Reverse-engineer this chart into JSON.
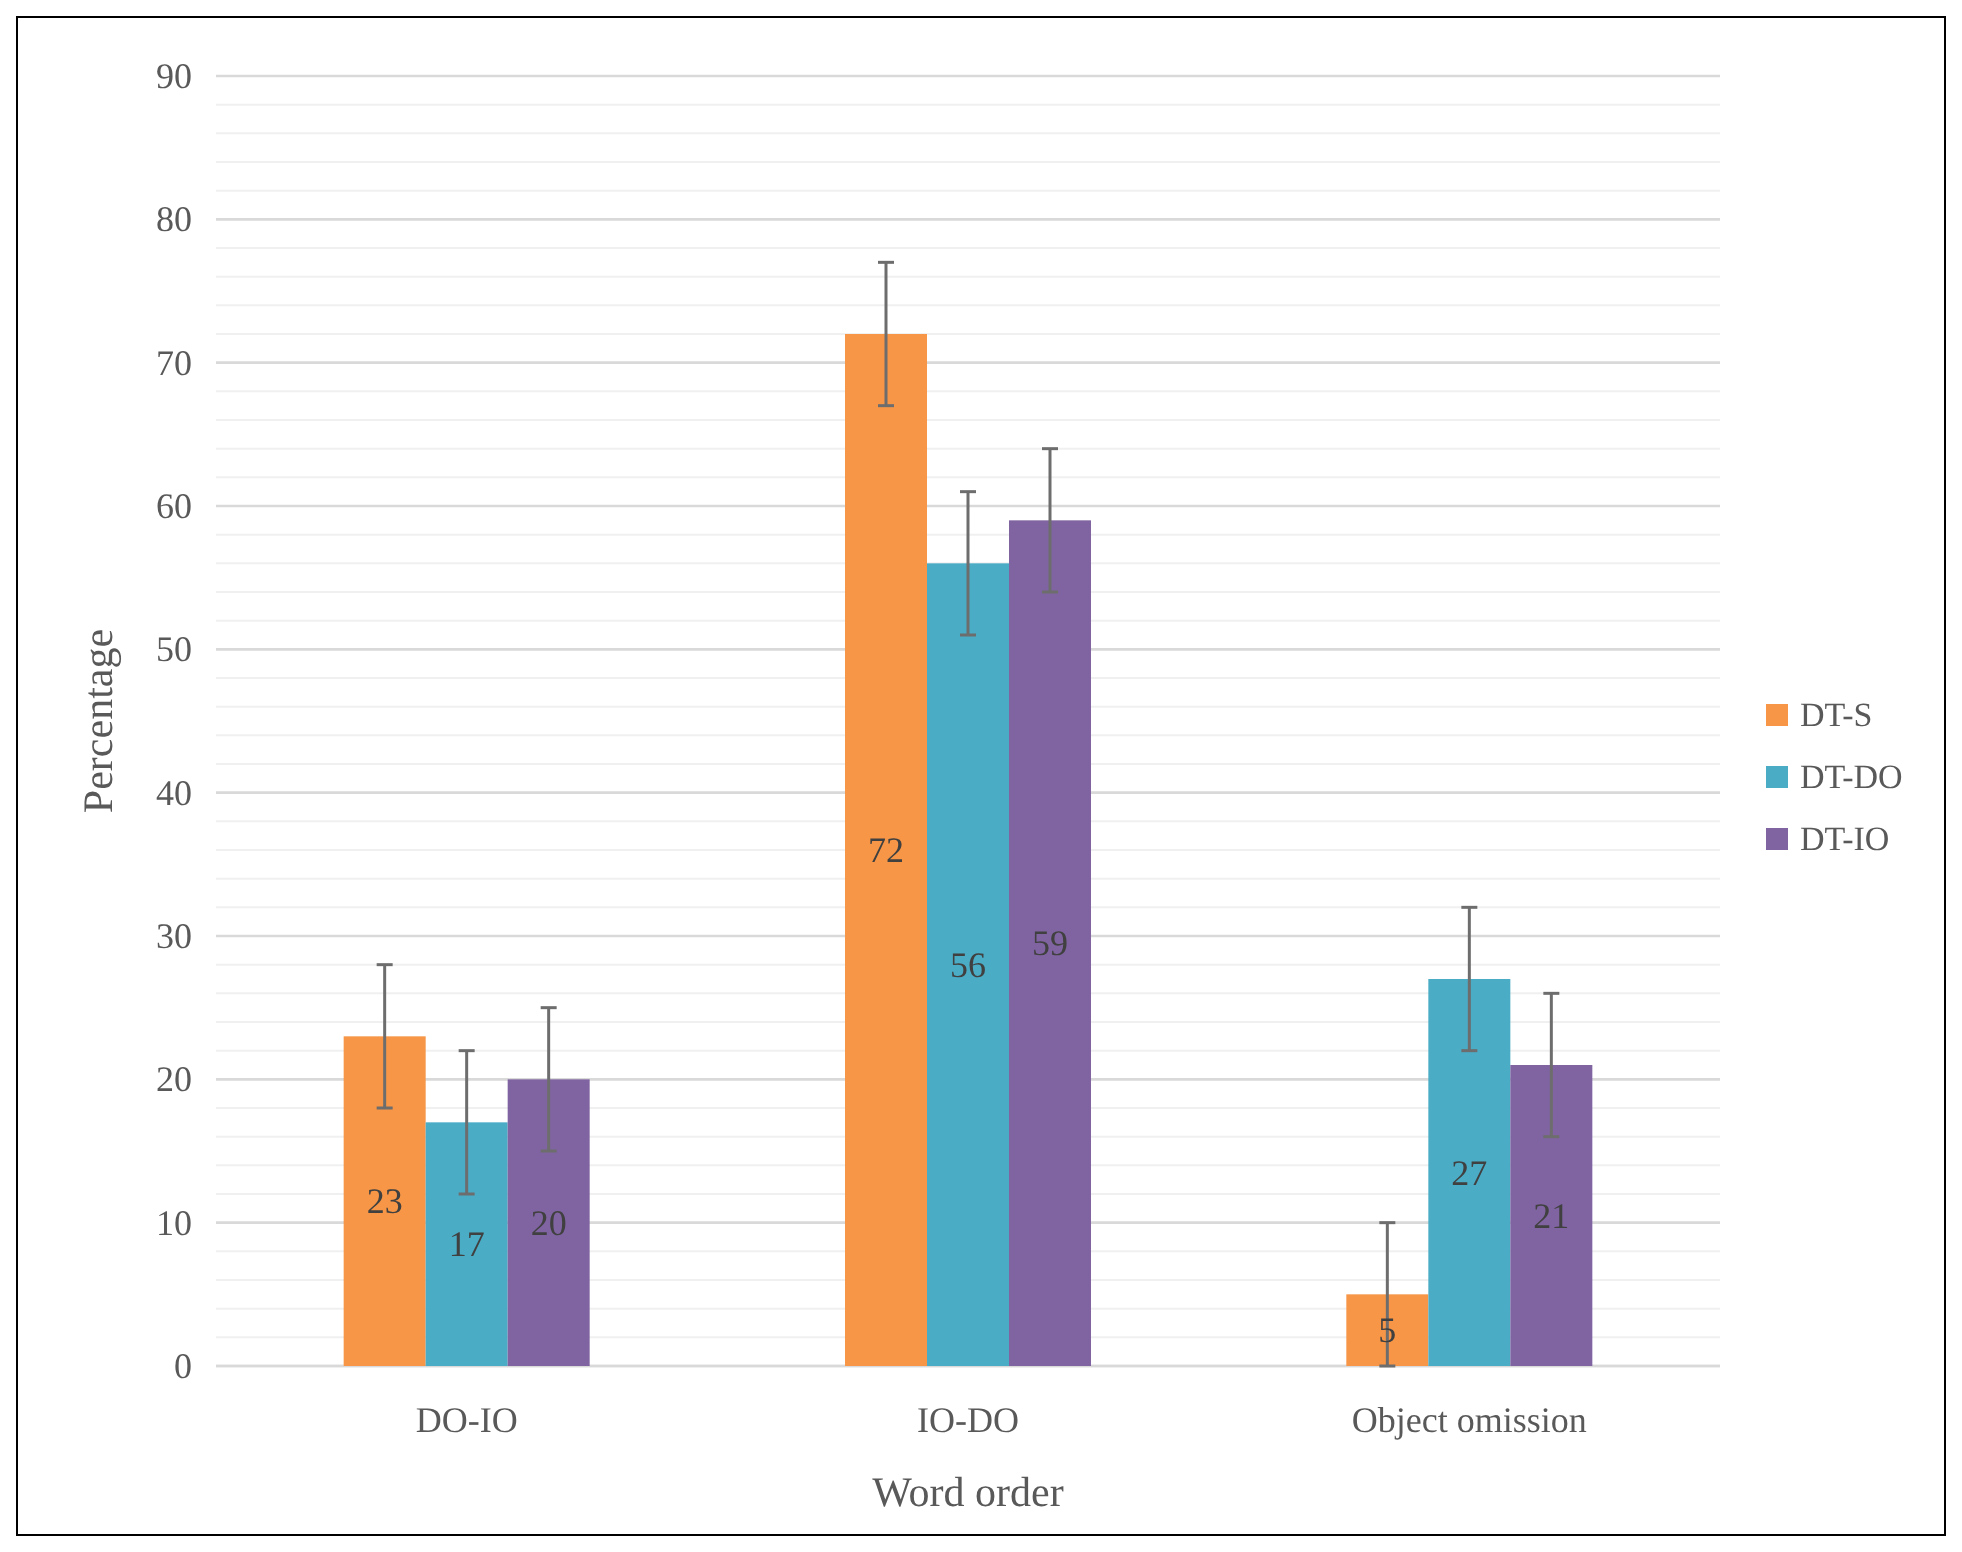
{
  "chart_data": {
    "type": "bar",
    "xlabel": "Word order",
    "ylabel": "Percentage",
    "categories": [
      "DO-IO",
      "IO-DO",
      "Object omission"
    ],
    "series": [
      {
        "name": "DT-S",
        "color": "#f79646",
        "values": [
          23,
          72,
          5
        ],
        "errors": [
          5,
          5,
          5
        ]
      },
      {
        "name": "DT-DO",
        "color": "#4bacc6",
        "values": [
          17,
          56,
          27
        ],
        "errors": [
          5,
          5,
          5
        ]
      },
      {
        "name": "DT-IO",
        "color": "#8064a2",
        "values": [
          20,
          59,
          21
        ],
        "errors": [
          5,
          5,
          5
        ]
      }
    ],
    "ylim": [
      0,
      90
    ],
    "yticks": [
      0,
      {
        "value": 2,
        "label": null
      },
      {
        "value": 4,
        "label": null
      },
      {
        "value": 6,
        "label": null
      },
      {
        "value": 8,
        "label": null
      },
      10,
      {
        "value": 12,
        "label": null
      },
      {
        "value": 14,
        "label": null
      },
      {
        "value": 16,
        "label": null
      },
      {
        "value": 18,
        "label": null
      },
      20,
      {
        "value": 22,
        "label": null
      },
      {
        "value": 24,
        "label": null
      },
      {
        "value": 26,
        "label": null
      },
      {
        "value": 28,
        "label": null
      },
      30,
      {
        "value": 32,
        "label": null
      },
      {
        "value": 34,
        "label": null
      },
      {
        "value": 36,
        "label": null
      },
      {
        "value": 38,
        "label": null
      },
      40,
      {
        "value": 42,
        "label": null
      },
      {
        "value": 44,
        "label": null
      },
      {
        "value": 46,
        "label": null
      },
      {
        "value": 48,
        "label": null
      },
      50,
      {
        "value": 52,
        "label": null
      },
      {
        "value": 54,
        "label": null
      },
      {
        "value": 56,
        "label": null
      },
      {
        "value": 58,
        "label": null
      },
      60,
      {
        "value": 62,
        "label": null
      },
      {
        "value": 64,
        "label": null
      },
      {
        "value": 66,
        "label": null
      },
      {
        "value": 68,
        "label": null
      },
      70,
      {
        "value": 72,
        "label": null
      },
      {
        "value": 74,
        "label": null
      },
      {
        "value": 76,
        "label": null
      },
      {
        "value": 78,
        "label": null
      },
      80,
      {
        "value": 82,
        "label": null
      },
      {
        "value": 84,
        "label": null
      },
      {
        "value": 86,
        "label": null
      },
      {
        "value": 88,
        "label": null
      },
      90
    ],
    "grid": "y",
    "legend": "right",
    "data_labels": true
  }
}
